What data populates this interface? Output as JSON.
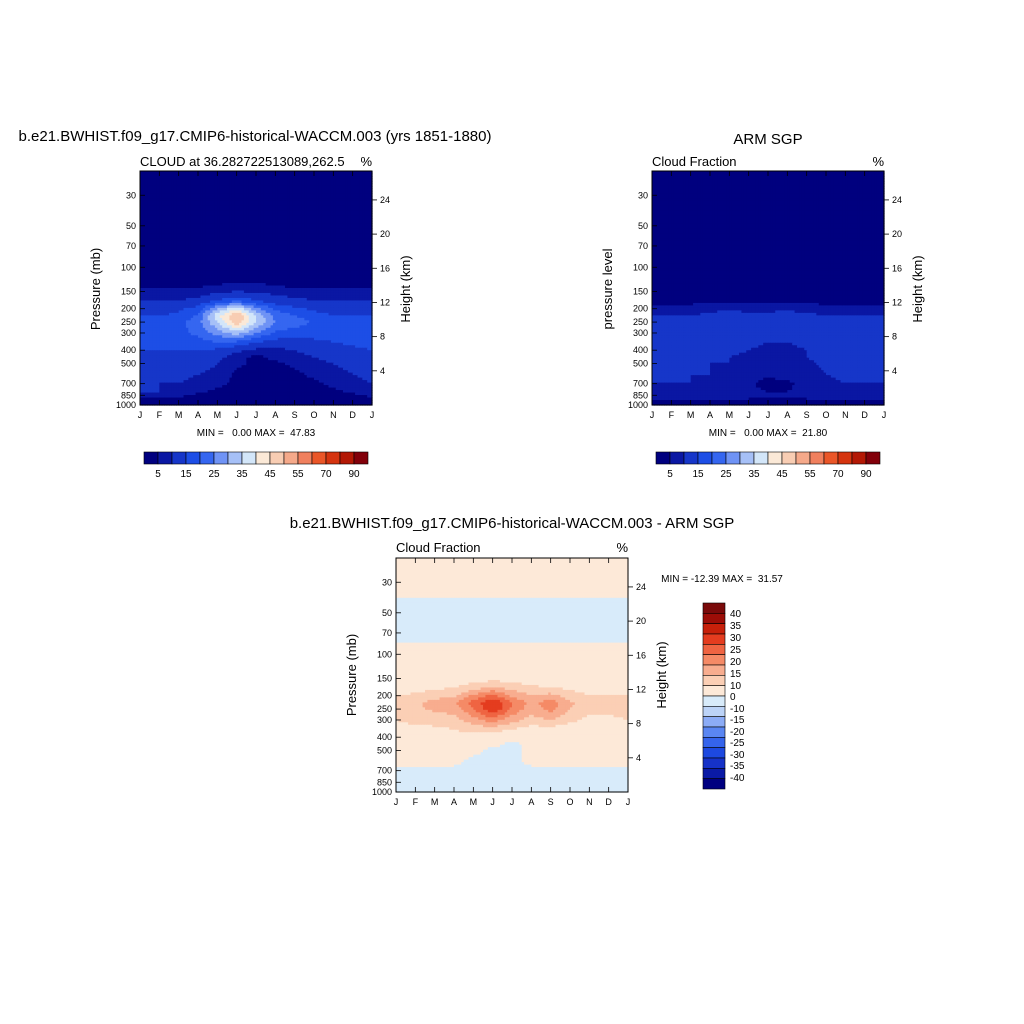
{
  "colors": {
    "seq": [
      "#00007f",
      "#0a17a3",
      "#1636c9",
      "#1d4ee6",
      "#3566f0",
      "#6f93f5",
      "#a6c0f7",
      "#d3e6f9",
      "#fbe9d7",
      "#f8cdb3",
      "#f5a98a",
      "#f0805e",
      "#ea5628",
      "#d5340f",
      "#b31805",
      "#82000a"
    ],
    "diff": [
      "#000080",
      "#0a1aa6",
      "#1632c8",
      "#1d49e0",
      "#3564ec",
      "#5a86f2",
      "#8cacf6",
      "#bcd3f7",
      "#d8ebfa",
      "#fde9d8",
      "#fbcfb5",
      "#f8ad8f",
      "#f58a66",
      "#ef6442",
      "#e43c1f",
      "#c7200a",
      "#9c0d07",
      "#7a0a0a"
    ]
  },
  "chart_data": [
    {
      "id": "model",
      "type": "heatmap",
      "title": "b.e21.BWHIST.f09_g17.CMIP6-historical-WACCM.003 (yrs 1851-1880)",
      "subtitle_left": "CLOUD at 36.282722513089,262.5",
      "subtitle_right": "%",
      "ylabel": "Pressure (mb)",
      "ylabel_right": "Height (km)",
      "x_ticks": [
        "J",
        "F",
        "M",
        "A",
        "M",
        "J",
        "J",
        "A",
        "S",
        "O",
        "N",
        "D",
        "J"
      ],
      "y_ticks": [
        30,
        50,
        70,
        100,
        150,
        200,
        250,
        300,
        400,
        500,
        700,
        850,
        1000
      ],
      "ylim": [
        1000,
        20
      ],
      "height_ticks": [
        4,
        8,
        12,
        16,
        20,
        24
      ],
      "min_label": "MIN =   0.00 MAX =  47.83",
      "colorbar_labels": [
        "5",
        "15",
        "25",
        "35",
        "45",
        "55",
        "70",
        "90"
      ],
      "levels": [
        2.5,
        5,
        10,
        15,
        20,
        25,
        30,
        35,
        40,
        45,
        50,
        55,
        60,
        70,
        80
      ],
      "pressure_levels": [
        20,
        30,
        50,
        70,
        100,
        125,
        150,
        175,
        200,
        225,
        250,
        300,
        350,
        400,
        450,
        500,
        600,
        700,
        800,
        850,
        900,
        950,
        1000
      ],
      "values": [
        [
          0.5,
          0.5,
          0.5,
          0.5,
          0.5,
          0.5,
          0.5,
          0.5,
          0.5,
          0.5,
          0.5,
          0.5,
          0.5
        ],
        [
          0.5,
          0.5,
          0.5,
          0.5,
          0.5,
          0.5,
          0.5,
          0.5,
          0.5,
          0.5,
          0.5,
          0.5,
          0.5
        ],
        [
          0.5,
          0.5,
          0.5,
          0.5,
          0.5,
          0.5,
          0.5,
          0.5,
          0.5,
          0.5,
          0.5,
          0.5,
          0.5
        ],
        [
          0.5,
          0.5,
          0.5,
          0.5,
          0.5,
          0.5,
          0.5,
          0.5,
          0.5,
          0.5,
          0.5,
          0.5,
          0.5
        ],
        [
          1,
          1,
          1,
          1,
          1,
          1,
          1,
          1,
          1,
          1,
          1,
          1,
          1
        ],
        [
          1.5,
          1.5,
          1.5,
          1.5,
          1.5,
          2,
          2,
          1.5,
          1.5,
          1.5,
          1.5,
          1.5,
          1.5
        ],
        [
          3,
          3,
          3,
          3,
          4,
          5,
          4.5,
          3.5,
          3,
          3,
          3,
          3,
          3
        ],
        [
          5,
          5,
          5,
          6,
          10,
          14,
          10,
          7,
          6,
          5,
          5,
          5,
          5
        ],
        [
          8,
          8,
          9,
          12,
          25,
          33,
          22,
          14,
          11,
          9,
          8,
          8,
          8
        ],
        [
          10,
          10,
          11,
          16,
          33,
          46,
          30,
          18,
          15,
          12,
          10,
          10,
          10
        ],
        [
          12,
          12,
          13,
          18,
          30,
          44,
          30,
          20,
          18,
          14,
          12,
          12,
          12
        ],
        [
          13,
          13,
          14,
          16,
          22,
          28,
          20,
          14,
          12,
          12,
          12,
          13,
          13
        ],
        [
          12,
          12,
          12,
          13,
          15,
          14,
          10,
          8,
          8,
          9,
          10,
          11,
          12
        ],
        [
          10,
          10,
          10,
          10,
          9,
          6,
          4,
          4,
          5,
          6,
          8,
          9,
          10
        ],
        [
          8,
          8,
          8,
          8,
          6,
          3,
          2,
          3,
          4,
          5,
          6,
          7,
          8
        ],
        [
          7,
          7,
          7,
          7,
          5,
          3,
          2,
          2,
          3,
          4,
          5,
          6,
          7
        ],
        [
          6,
          6,
          6,
          5,
          4,
          2,
          1.5,
          1.5,
          2,
          3,
          4,
          5,
          6
        ],
        [
          5,
          5,
          5,
          4,
          3,
          2,
          1.5,
          1.5,
          1.5,
          2,
          3,
          4,
          5
        ],
        [
          5,
          5,
          4,
          3,
          2,
          1.5,
          1.5,
          1.5,
          1.5,
          1.5,
          2,
          3,
          4
        ],
        [
          4,
          4,
          3,
          2,
          1.5,
          1,
          1,
          1,
          1,
          1,
          1.5,
          2,
          3
        ],
        [
          2,
          2,
          2,
          1.5,
          1,
          1,
          1,
          1,
          1,
          1,
          1,
          1.5,
          2
        ],
        [
          1,
          1,
          1,
          1,
          1,
          1,
          1,
          1,
          1,
          1,
          1,
          1,
          1
        ],
        [
          0.5,
          0.5,
          0.5,
          0.5,
          0.5,
          0.5,
          0.5,
          0.5,
          0.5,
          0.5,
          0.5,
          0.5,
          0.5
        ]
      ]
    },
    {
      "id": "obs",
      "type": "heatmap",
      "title": "ARM SGP",
      "subtitle_left": "Cloud Fraction",
      "subtitle_right": "%",
      "ylabel": "pressure level",
      "ylabel_right": "Height (km)",
      "x_ticks": [
        "J",
        "F",
        "M",
        "A",
        "M",
        "J",
        "J",
        "A",
        "S",
        "O",
        "N",
        "D",
        "J"
      ],
      "y_ticks": [
        30,
        50,
        70,
        100,
        150,
        200,
        250,
        300,
        400,
        500,
        700,
        850,
        1000
      ],
      "ylim": [
        1000,
        20
      ],
      "height_ticks": [
        4,
        8,
        12,
        16,
        20,
        24
      ],
      "min_label": "MIN =   0.00 MAX =  21.80",
      "colorbar_labels": [
        "5",
        "15",
        "25",
        "35",
        "45",
        "55",
        "70",
        "90"
      ],
      "levels": [
        2.5,
        5,
        10,
        15,
        20,
        25,
        30,
        35,
        40,
        45,
        50,
        55,
        60,
        70,
        80
      ],
      "pressure_levels": [
        20,
        30,
        50,
        70,
        100,
        125,
        150,
        175,
        200,
        225,
        250,
        300,
        350,
        400,
        450,
        500,
        600,
        700,
        800,
        850,
        900,
        950,
        1000
      ],
      "values": [
        [
          0.5,
          0.5,
          0.5,
          0.5,
          0.5,
          0.5,
          0.5,
          0.5,
          0.5,
          0.5,
          0.5,
          0.5,
          0.5
        ],
        [
          0.5,
          0.5,
          0.5,
          0.5,
          0.5,
          0.5,
          0.5,
          0.5,
          0.5,
          0.5,
          0.5,
          0.5,
          0.5
        ],
        [
          0.5,
          0.5,
          0.5,
          0.5,
          0.5,
          0.5,
          0.5,
          0.5,
          0.5,
          0.5,
          0.5,
          0.5,
          0.5
        ],
        [
          0.5,
          0.5,
          0.5,
          0.5,
          0.5,
          0.5,
          0.5,
          0.5,
          0.5,
          0.5,
          0.5,
          0.5,
          0.5
        ],
        [
          0.5,
          0.5,
          0.5,
          0.5,
          0.5,
          0.5,
          0.5,
          0.5,
          0.5,
          0.5,
          0.5,
          0.5,
          0.5
        ],
        [
          1,
          1,
          1,
          1,
          1,
          1,
          1,
          1,
          1,
          1,
          1,
          1,
          1
        ],
        [
          1.5,
          1.5,
          1.5,
          1.5,
          1.5,
          1.5,
          1.5,
          1.5,
          1.5,
          1.5,
          1.5,
          1.5,
          1.5
        ],
        [
          2,
          2,
          2,
          2.2,
          2,
          2,
          2,
          2,
          2,
          2,
          2,
          2,
          2
        ],
        [
          3,
          3,
          3,
          4,
          4,
          4,
          4,
          4,
          3.5,
          3,
          3,
          3,
          3
        ],
        [
          5,
          5,
          5,
          6,
          7,
          6,
          6,
          7,
          6,
          5,
          5,
          5,
          5
        ],
        [
          6,
          7,
          7,
          8,
          9,
          8,
          8,
          9,
          8,
          7,
          6,
          6,
          6
        ],
        [
          7,
          8,
          8,
          8,
          9,
          8,
          7,
          8,
          8,
          8,
          7,
          7,
          7
        ],
        [
          7,
          8,
          8,
          7,
          7,
          6,
          5,
          5,
          6,
          7,
          8,
          8,
          7
        ],
        [
          7,
          7,
          7,
          6,
          6,
          5,
          4,
          4,
          5,
          6,
          7,
          7,
          7
        ],
        [
          6,
          6,
          6,
          6,
          5,
          4,
          3.5,
          4,
          5,
          6,
          6,
          6,
          6
        ],
        [
          6,
          6,
          6,
          5,
          5,
          4,
          3.5,
          4,
          4.5,
          5.5,
          6,
          6,
          6
        ],
        [
          6,
          6,
          5,
          5,
          4.5,
          3.5,
          3,
          3.5,
          4,
          5,
          5.5,
          6,
          6
        ],
        [
          5,
          5,
          5,
          4.5,
          4,
          3,
          1.5,
          2,
          3.5,
          4.5,
          5,
          5,
          5
        ],
        [
          4.5,
          4.5,
          4.5,
          4,
          3.5,
          3,
          2.5,
          2.5,
          3,
          3.5,
          4,
          4.5,
          4.5
        ],
        [
          4,
          4,
          4,
          4,
          3.5,
          3,
          3,
          3,
          3,
          3.5,
          4,
          4,
          4
        ],
        [
          3,
          4,
          4,
          3.5,
          3,
          2.5,
          2.5,
          2.5,
          2.5,
          3,
          4,
          3.5,
          3
        ],
        [
          2,
          2,
          2,
          2,
          2,
          2,
          2,
          2,
          2,
          2,
          2,
          2,
          2
        ],
        [
          1,
          1,
          1,
          1,
          1,
          1,
          1,
          1,
          1,
          1,
          1,
          1,
          1
        ]
      ]
    },
    {
      "id": "diff",
      "type": "heatmap",
      "title": "b.e21.BWHIST.f09_g17.CMIP6-historical-WACCM.003 - ARM SGP",
      "subtitle_left": "Cloud Fraction",
      "subtitle_right": "%",
      "ylabel": "Pressure (mb)",
      "ylabel_right": "Height (km)",
      "x_ticks": [
        "J",
        "F",
        "M",
        "A",
        "M",
        "J",
        "J",
        "A",
        "S",
        "O",
        "N",
        "D",
        "J"
      ],
      "y_ticks": [
        30,
        50,
        70,
        100,
        150,
        200,
        250,
        300,
        400,
        500,
        700,
        850,
        1000
      ],
      "ylim": [
        1000,
        20
      ],
      "height_ticks": [
        4,
        8,
        12,
        16,
        20,
        24
      ],
      "min_label": "MIN = -12.39 MAX =  31.57",
      "colorbar_labels": [
        "40",
        "35",
        "30",
        "25",
        "20",
        "15",
        "10",
        "0",
        "-10",
        "-15",
        "-20",
        "-25",
        "-30",
        "-35",
        "-40"
      ],
      "levels": [
        -40,
        -35,
        -30,
        -25,
        -20,
        -15,
        -10,
        -5,
        0,
        5,
        10,
        15,
        20,
        25,
        30,
        35,
        40
      ],
      "pressure_levels": [
        20,
        30,
        50,
        70,
        100,
        125,
        150,
        175,
        200,
        225,
        250,
        300,
        350,
        400,
        450,
        500,
        600,
        700,
        800,
        850,
        900,
        950,
        1000
      ],
      "values": [
        [
          1,
          1,
          1,
          1,
          1,
          1,
          1,
          1,
          1,
          1,
          1,
          1,
          1
        ],
        [
          1,
          1,
          1,
          1,
          1,
          1,
          1,
          1,
          1,
          1,
          1,
          1,
          1
        ],
        [
          -1,
          -1,
          -1,
          -1,
          -1,
          -1,
          -1,
          -1,
          -1,
          -1,
          -1,
          -1,
          -1
        ],
        [
          -1,
          -1,
          -1,
          -1,
          -1,
          -1,
          -1,
          -1,
          -1,
          -1,
          -1,
          -1,
          -1
        ],
        [
          1,
          1,
          1,
          1,
          1,
          1,
          1,
          1,
          1,
          1,
          1,
          1,
          1
        ],
        [
          1,
          1,
          1,
          1,
          1,
          1,
          1,
          1,
          1,
          1,
          1,
          1,
          1
        ],
        [
          2,
          2,
          2,
          2,
          2,
          3,
          3,
          2,
          2,
          2,
          2,
          2,
          2
        ],
        [
          3,
          3,
          4,
          5,
          8,
          11,
          8,
          6,
          5,
          4,
          3,
          3,
          3
        ],
        [
          5,
          6,
          8,
          9,
          16,
          22,
          14,
          10,
          12,
          7,
          5,
          5,
          5
        ],
        [
          7,
          9,
          12,
          14,
          22,
          30,
          20,
          13,
          18,
          11,
          7,
          7,
          7
        ],
        [
          7,
          9,
          11,
          12,
          20,
          30,
          19,
          12,
          17,
          10,
          6,
          6,
          7
        ],
        [
          5,
          6,
          7,
          8,
          13,
          18,
          12,
          8,
          10,
          6,
          4,
          4,
          5
        ],
        [
          4,
          4,
          4,
          5,
          7,
          7,
          5,
          3,
          3,
          3,
          2,
          3,
          4
        ],
        [
          2,
          2,
          2,
          3,
          3,
          2,
          1,
          1,
          1,
          1,
          1,
          1,
          2
        ],
        [
          1,
          1,
          1,
          1,
          1,
          0.5,
          -0.5,
          0.5,
          0.5,
          0.5,
          0.5,
          0.5,
          1
        ],
        [
          1,
          1,
          1,
          1,
          0.5,
          -0.5,
          -0.5,
          0.5,
          0.5,
          0.5,
          0.5,
          1,
          1
        ],
        [
          0.5,
          0.5,
          0.5,
          0.5,
          -0.5,
          -0.5,
          -0.5,
          0.5,
          0.5,
          0.5,
          0.5,
          0.5,
          0.5
        ],
        [
          -0.5,
          -0.5,
          -0.5,
          -0.5,
          -0.5,
          -0.5,
          -0.5,
          -0.5,
          -0.5,
          -0.5,
          -0.5,
          -0.5,
          -0.5
        ],
        [
          -0.5,
          -0.5,
          -0.5,
          -0.5,
          -0.5,
          -0.5,
          -0.5,
          -0.5,
          -0.5,
          -0.5,
          -0.5,
          -0.5,
          -0.5
        ],
        [
          -1,
          -6,
          -6,
          -1,
          -1,
          -1,
          -1,
          -1,
          -1,
          -6,
          -1,
          -1,
          -1
        ],
        [
          -1,
          -1,
          -1,
          -1,
          -1,
          -1,
          -1,
          -1,
          -1,
          -1,
          -1,
          -1,
          -1
        ],
        [
          -0.5,
          -0.5,
          -0.5,
          -0.5,
          -0.5,
          -0.5,
          -0.5,
          -0.5,
          -0.5,
          -0.5,
          -0.5,
          -0.5,
          -0.5
        ],
        [
          -0.5,
          -0.5,
          -0.5,
          -0.5,
          -0.5,
          -0.5,
          -0.5,
          -0.5,
          -0.5,
          -0.5,
          -0.5,
          -0.5,
          -0.5
        ]
      ]
    }
  ]
}
